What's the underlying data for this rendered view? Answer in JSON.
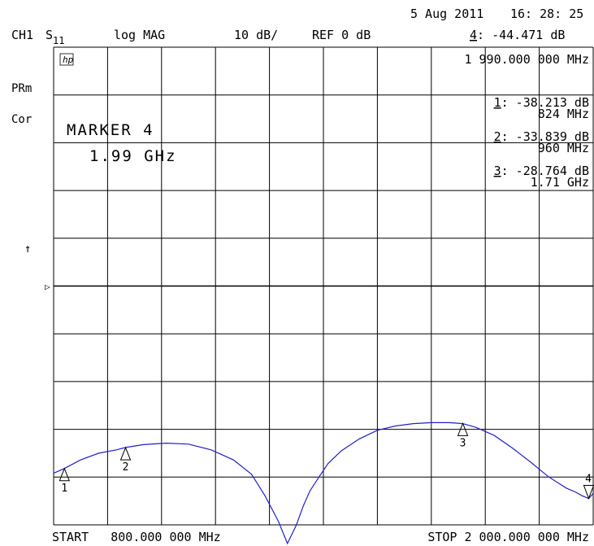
{
  "header": {
    "date": "5 Aug 2011",
    "time": "16: 28: 25",
    "channel": "CH1",
    "param_main": "S",
    "param_sub": "11",
    "format": "log MAG",
    "scale": "10 dB/",
    "reference": "REF 0 dB",
    "active_marker_num": "4",
    "active_marker_value": ": -44.471 dB"
  },
  "side_labels": {
    "prm": "PRm",
    "cor": "Cor",
    "arrow_up": "↑",
    "ref_pointer": "▷"
  },
  "logo": "hp",
  "active_marker_freq": "1 990.000 000 MHz",
  "marker_box": {
    "title": "MARKER 4",
    "value": "1.99 GHz"
  },
  "marker_readouts": [
    {
      "num": "1",
      "value": ": -38.213 dB",
      "freq": "824 MHz"
    },
    {
      "num": "2",
      "value": ": -33.839 dB",
      "freq": "960 MHz"
    },
    {
      "num": "3",
      "value": ": -28.764 dB",
      "freq": "1.71 GHz"
    }
  ],
  "footer": {
    "start": "START   800.000 000 MHz",
    "stop": "STOP 2 000.000 000 MHz"
  },
  "colors": {
    "trace": "#2020d0",
    "grid": "#000000",
    "background": "#ffffff"
  },
  "chart_data": {
    "type": "line",
    "title": "",
    "xlabel": "",
    "ylabel": "",
    "x_unit": "MHz",
    "y_unit": "dB",
    "xlim": [
      800,
      2000
    ],
    "ylim": [
      -100,
      0
    ],
    "reference_level": 0,
    "grid": true,
    "series": [
      {
        "x": [
          800,
          824,
          860,
          900,
          940,
          960,
          1000,
          1050,
          1100,
          1150,
          1200,
          1240,
          1270,
          1300,
          1320,
          1340,
          1355,
          1370,
          1390,
          1410,
          1440,
          1480,
          1520,
          1560,
          1600,
          1640,
          1680,
          1710,
          1740,
          1780,
          1820,
          1860,
          1900,
          1940,
          1960,
          1975,
          1990,
          2000
        ],
        "y": [
          -39.2,
          -38.2,
          -36.4,
          -35.0,
          -34.3,
          -33.8,
          -33.2,
          -32.9,
          -33.1,
          -34.3,
          -36.4,
          -39.4,
          -43.9,
          -49.3,
          -53.9,
          -50.0,
          -46.1,
          -42.9,
          -40.0,
          -37.2,
          -34.5,
          -32.0,
          -30.2,
          -29.3,
          -28.8,
          -28.6,
          -28.6,
          -28.8,
          -29.6,
          -31.3,
          -33.9,
          -36.8,
          -39.9,
          -42.3,
          -43.1,
          -43.9,
          -44.5,
          -43.4
        ]
      }
    ],
    "markers": [
      {
        "label": "1",
        "x": 824,
        "y": -38.213,
        "dir": "up"
      },
      {
        "label": "2",
        "x": 960,
        "y": -33.839,
        "dir": "up"
      },
      {
        "label": "3",
        "x": 1710,
        "y": -28.764,
        "dir": "up"
      },
      {
        "label": "4",
        "x": 1990,
        "y": -44.471,
        "dir": "down"
      }
    ]
  }
}
